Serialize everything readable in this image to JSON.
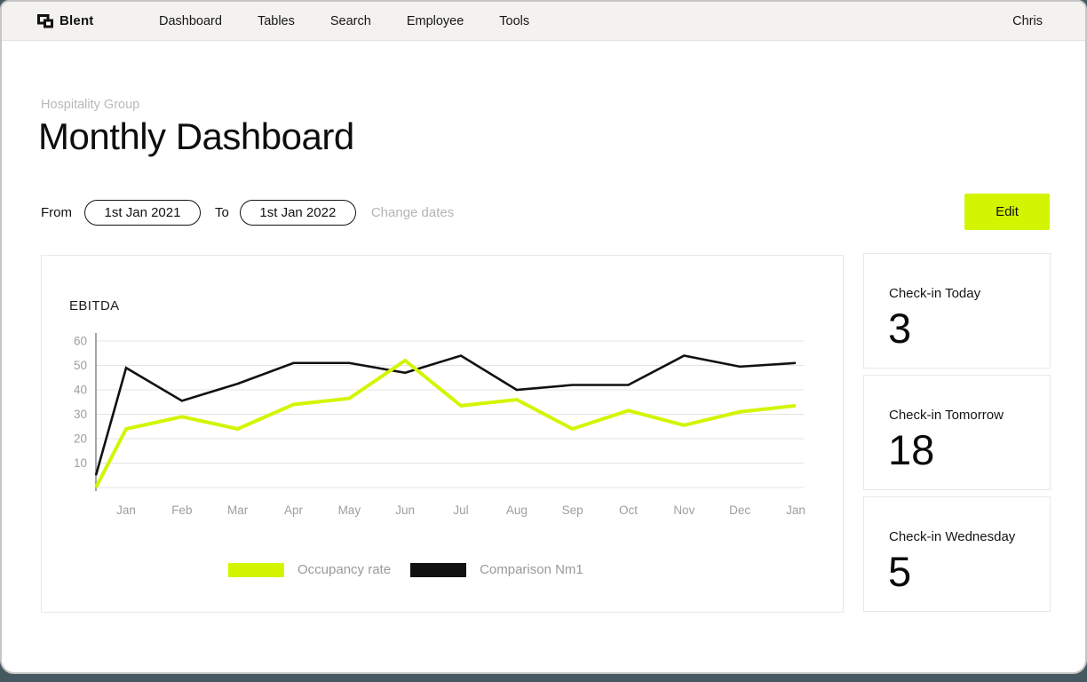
{
  "nav": {
    "brand": "Blent",
    "items": [
      "Dashboard",
      "Tables",
      "Search",
      "Employee",
      "Tools"
    ],
    "user": "Chris"
  },
  "page": {
    "eyebrow": "Hospitality Group",
    "title": "Monthly Dashboard"
  },
  "date_filter": {
    "from_label": "From",
    "from_value": "1st Jan 2021",
    "to_label": "To",
    "to_value": "1st Jan 2022",
    "change_dates_label": "Change dates",
    "edit_label": "Edit"
  },
  "chart_data": {
    "type": "line",
    "title": "EBITDA",
    "categories": [
      "",
      "Jan",
      "Feb",
      "Mar",
      "Apr",
      "May",
      "Jun",
      "Jul",
      "Aug",
      "Sep",
      "Oct",
      "Nov",
      "Dec",
      "Jan"
    ],
    "series": [
      {
        "name": "Occupancy rate",
        "color": "#d3f501",
        "values": [
          0,
          24,
          29,
          24,
          34,
          36.5,
          52,
          33.5,
          36,
          24,
          31.5,
          25.5,
          31,
          33.5
        ]
      },
      {
        "name": "Comparison Nm1",
        "color": "#111111",
        "values": [
          5,
          49,
          35.5,
          42.5,
          51,
          51,
          47,
          54,
          40,
          42,
          42,
          54,
          49.5,
          51
        ]
      }
    ],
    "ylim": [
      0,
      60
    ],
    "yticks": [
      10,
      20,
      30,
      40,
      50,
      60
    ],
    "grid": true,
    "legend_position": "bottom"
  },
  "stats": [
    {
      "label": "Check-in Today",
      "value": "3"
    },
    {
      "label": "Check-in Tomorrow",
      "value": "18"
    },
    {
      "label": "Check-in Wednesday",
      "value": "5"
    }
  ],
  "colors": {
    "accent": "#d3f501",
    "header_bg": "#f4f2ee",
    "frame": "#475960",
    "grid_line": "#e4e4e4",
    "axis_text": "#9e9e9e"
  }
}
